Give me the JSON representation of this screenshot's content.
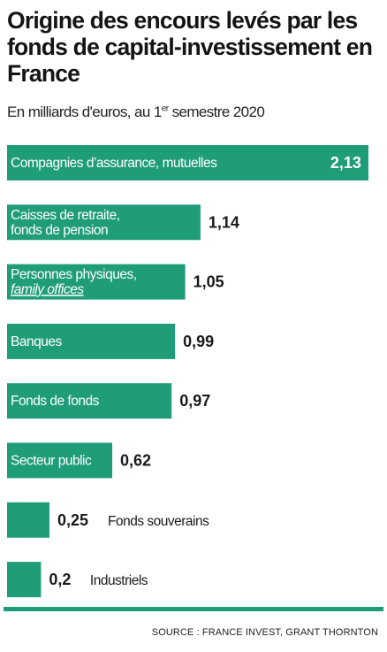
{
  "title": "Origine des encours levés par les fonds de capital-investissement en France",
  "subtitle_main": "En milliards d'euros, au 1",
  "subtitle_sup": "er",
  "subtitle_tail": " semestre 2020",
  "source": "SOURCE : FRANCE INVEST, GRANT THORNTON",
  "colors": {
    "bar": "#1f9c78",
    "text": "#1a1a1a"
  },
  "chart_data": {
    "type": "bar",
    "orientation": "horizontal",
    "unit": "milliards d'euros",
    "categories": [
      {
        "label_lines": [
          "Compagnies d’assurance, mutuelles"
        ],
        "value": 2.13,
        "value_label": "2,13",
        "italic_line": null
      },
      {
        "label_lines": [
          "Caisses de retraite,",
          "fonds de pension"
        ],
        "value": 1.14,
        "value_label": "1,14",
        "italic_line": null
      },
      {
        "label_lines": [
          "Personnes physiques,",
          "family offices"
        ],
        "value": 1.05,
        "value_label": "1,05",
        "italic_line": 1
      },
      {
        "label_lines": [
          "Banques"
        ],
        "value": 0.99,
        "value_label": "0,99",
        "italic_line": null
      },
      {
        "label_lines": [
          "Fonds de fonds"
        ],
        "value": 0.97,
        "value_label": "0,97",
        "italic_line": null
      },
      {
        "label_lines": [
          "Secteur public"
        ],
        "value": 0.62,
        "value_label": "0,62",
        "italic_line": null
      },
      {
        "label_lines": [],
        "outside_label": "Fonds souverains",
        "value": 0.25,
        "value_label": "0,25",
        "italic_line": null
      },
      {
        "label_lines": [],
        "outside_label": "Industriels",
        "value": 0.2,
        "value_label": "0,2",
        "italic_line": null
      }
    ]
  }
}
